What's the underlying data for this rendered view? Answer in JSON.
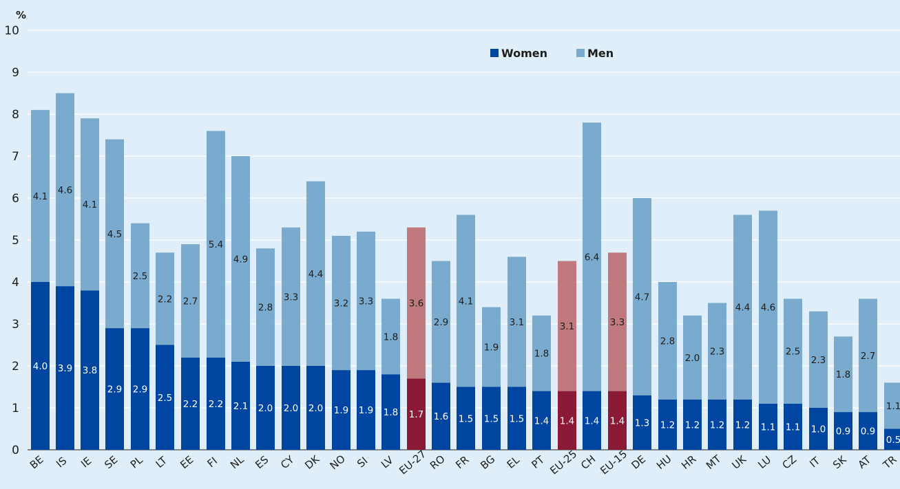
{
  "chart_data": {
    "type": "bar",
    "stacked": true,
    "unit_label": "%",
    "ylim": [
      0,
      10
    ],
    "y_ticks": [
      "0",
      "1",
      "2",
      "3",
      "4",
      "5",
      "6",
      "7",
      "8",
      "9",
      "10"
    ],
    "grid": true,
    "legend_position": "top-right",
    "categories": [
      "BE",
      "IS",
      "IE",
      "SE",
      "PL",
      "LT",
      "EE",
      "FI",
      "NL",
      "ES",
      "CY",
      "DK",
      "NO",
      "SI",
      "LV",
      "EU-27",
      "RO",
      "FR",
      "BG",
      "EL",
      "PT",
      "EU-25",
      "CH",
      "EU-15",
      "DE",
      "HU",
      "HR",
      "MT",
      "UK",
      "LU",
      "CZ",
      "IT",
      "SK",
      "AT",
      "TR"
    ],
    "highlighted_categories": [
      "EU-27",
      "EU-25",
      "EU-15"
    ],
    "series": [
      {
        "name": "Women",
        "color": "#0046a0",
        "highlight_color": "#8b1a36",
        "values": [
          4.0,
          3.9,
          3.8,
          2.9,
          2.9,
          2.5,
          2.2,
          2.2,
          2.1,
          2.0,
          2.0,
          2.0,
          1.9,
          1.9,
          1.8,
          1.7,
          1.6,
          1.5,
          1.5,
          1.5,
          1.4,
          1.4,
          1.4,
          1.4,
          1.3,
          1.2,
          1.2,
          1.2,
          1.2,
          1.1,
          1.1,
          1.0,
          0.9,
          0.9,
          0.5
        ],
        "labels": [
          "4.0",
          "3.9",
          "3.8",
          "2.9",
          "2.9",
          "2.5",
          "2.2",
          "2.2",
          "2.1",
          "2.0",
          "2.0",
          "2.0",
          "1.9",
          "1.9",
          "1.8",
          "1.7",
          "1.6",
          "1.5",
          "1.5",
          "1.5",
          "1.4",
          "1.4",
          "1.4",
          "1.4",
          "1.3",
          "1.2",
          "1.2",
          "1.2",
          "1.2",
          "1.1",
          "1.1",
          "1.0",
          "0.9",
          "0.9",
          "0.5"
        ]
      },
      {
        "name": "Men",
        "color": "#7aaacd",
        "highlight_color": "#c07a7e",
        "values": [
          4.1,
          4.6,
          4.1,
          4.5,
          2.5,
          2.2,
          2.7,
          5.4,
          4.9,
          2.8,
          3.3,
          4.4,
          3.2,
          3.3,
          1.8,
          3.6,
          2.9,
          4.1,
          1.9,
          3.1,
          1.8,
          3.1,
          6.4,
          3.3,
          4.7,
          2.8,
          2.0,
          2.3,
          4.4,
          4.6,
          2.5,
          2.3,
          1.8,
          2.7,
          1.1
        ],
        "labels": [
          "4.1",
          "4.6",
          "4.1",
          "4.5",
          "2.5",
          "2.2",
          "2.7",
          "5.4",
          "4.9",
          "2.8",
          "3.3",
          "4.4",
          "3.2",
          "3.3",
          "1.8",
          "3.6",
          "2.9",
          "4.1",
          "1.9",
          "3.1",
          "1.8",
          "3.1",
          "6.4",
          "3.3",
          "4.7",
          "2.8",
          "2.0",
          "2.3",
          "4.4",
          "4.6",
          "2.5",
          "2.3",
          "1.8",
          "2.7",
          "1.1"
        ]
      }
    ]
  }
}
